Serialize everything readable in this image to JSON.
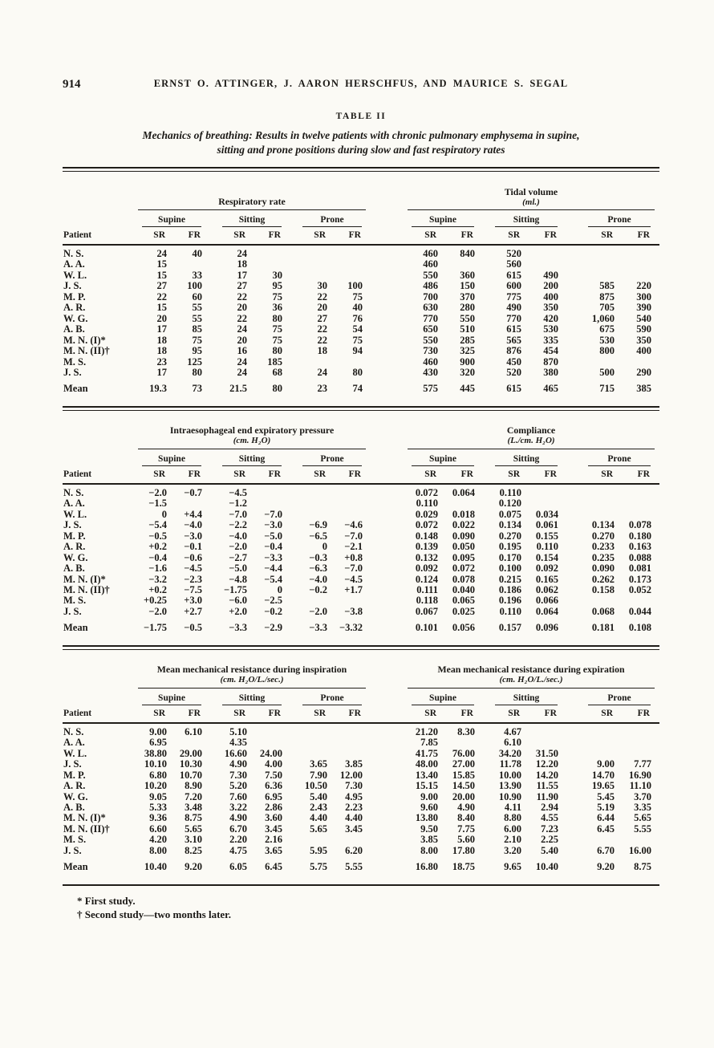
{
  "page": {
    "number": "914",
    "running_head": "ERNST O. ATTINGER, J. AARON HERSCHFUS, AND MAURICE S. SEGAL",
    "table_label": "TABLE II",
    "table_title": [
      "Mechanics of breathing: Results in twelve patients with chronic pulmonary emphysema in supine,",
      "sitting and prone positions during slow and fast respiratory rates"
    ],
    "footnotes": [
      "* First study.",
      "† Second study—two months later."
    ]
  },
  "tables": {
    "headers": {
      "patient": "Patient",
      "positions": [
        "Supine",
        "Sitting",
        "Prone"
      ],
      "sr": "SR",
      "fr": "FR",
      "mean_label": "Mean"
    }
  },
  "patients": [
    "N. S.",
    "A. A.",
    "W. L.",
    "J. S.",
    "M. P.",
    "A. R.",
    "W. G.",
    "A. B.",
    "M. N. (I)*",
    "M. N. (II)†",
    "M. S.",
    "J. S."
  ],
  "sections": [
    {
      "left": {
        "title": "Respiratory rate",
        "unit": "",
        "rows": [
          [
            "24",
            "40",
            "24",
            "",
            "",
            ""
          ],
          [
            "15",
            "",
            "18",
            "",
            "",
            ""
          ],
          [
            "15",
            "33",
            "17",
            "30",
            "",
            ""
          ],
          [
            "27",
            "100",
            "27",
            "95",
            "30",
            "100"
          ],
          [
            "22",
            "60",
            "22",
            "75",
            "22",
            "75"
          ],
          [
            "15",
            "55",
            "20",
            "36",
            "20",
            "40"
          ],
          [
            "20",
            "55",
            "22",
            "80",
            "27",
            "76"
          ],
          [
            "17",
            "85",
            "24",
            "75",
            "22",
            "54"
          ],
          [
            "18",
            "75",
            "20",
            "75",
            "22",
            "75"
          ],
          [
            "18",
            "95",
            "16",
            "80",
            "18",
            "94"
          ],
          [
            "23",
            "125",
            "24",
            "185",
            "",
            ""
          ],
          [
            "17",
            "80",
            "24",
            "68",
            "24",
            "80"
          ]
        ],
        "mean": [
          "19.3",
          "73",
          "21.5",
          "80",
          "23",
          "74"
        ]
      },
      "right": {
        "title": "Tidal volume",
        "unit": "(ml.)",
        "rows": [
          [
            "460",
            "840",
            "520",
            "",
            "",
            ""
          ],
          [
            "460",
            "",
            "560",
            "",
            "",
            ""
          ],
          [
            "550",
            "360",
            "615",
            "490",
            "",
            ""
          ],
          [
            "486",
            "150",
            "600",
            "200",
            "585",
            "220"
          ],
          [
            "700",
            "370",
            "775",
            "400",
            "875",
            "300"
          ],
          [
            "630",
            "280",
            "490",
            "350",
            "705",
            "390"
          ],
          [
            "770",
            "550",
            "770",
            "420",
            "1,060",
            "540"
          ],
          [
            "650",
            "510",
            "615",
            "530",
            "675",
            "590"
          ],
          [
            "550",
            "285",
            "565",
            "335",
            "530",
            "350"
          ],
          [
            "730",
            "325",
            "876",
            "454",
            "800",
            "400"
          ],
          [
            "460",
            "900",
            "450",
            "870",
            "",
            ""
          ],
          [
            "430",
            "320",
            "520",
            "380",
            "500",
            "290"
          ]
        ],
        "mean": [
          "575",
          "445",
          "615",
          "465",
          "715",
          "385"
        ]
      }
    },
    {
      "left": {
        "title": "Intraesophageal end expiratory pressure",
        "unit": "(cm. H₂O)",
        "rows": [
          [
            "−2.0",
            "−0.7",
            "−4.5",
            "",
            "",
            ""
          ],
          [
            "−1.5",
            "",
            "−1.2",
            "",
            "",
            ""
          ],
          [
            "0",
            "+4.4",
            "−7.0",
            "−7.0",
            "",
            ""
          ],
          [
            "−5.4",
            "−4.0",
            "−2.2",
            "−3.0",
            "−6.9",
            "−4.6"
          ],
          [
            "−0.5",
            "−3.0",
            "−4.0",
            "−5.0",
            "−6.5",
            "−7.0"
          ],
          [
            "+0.2",
            "−0.1",
            "−2.0",
            "−0.4",
            "0",
            "−2.1"
          ],
          [
            "−0.4",
            "−0.6",
            "−2.7",
            "−3.3",
            "−0.3",
            "+0.8"
          ],
          [
            "−1.6",
            "−4.5",
            "−5.0",
            "−4.4",
            "−6.3",
            "−7.0"
          ],
          [
            "−3.2",
            "−2.3",
            "−4.8",
            "−5.4",
            "−4.0",
            "−4.5"
          ],
          [
            "+0.2",
            "−7.5",
            "−1.75",
            "0",
            "−0.2",
            "+1.7"
          ],
          [
            "+0.25",
            "+3.0",
            "−6.0",
            "−2.5",
            "",
            ""
          ],
          [
            "−2.0",
            "+2.7",
            "+2.0",
            "−0.2",
            "−2.0",
            "−3.8"
          ]
        ],
        "mean": [
          "−1.75",
          "−0.5",
          "−3.3",
          "−2.9",
          "−3.3",
          "−3.32"
        ]
      },
      "right": {
        "title": "Compliance",
        "unit": "(L./cm. H₂O)",
        "rows": [
          [
            "0.072",
            "0.064",
            "0.110",
            "",
            "",
            ""
          ],
          [
            "0.110",
            "",
            "0.120",
            "",
            "",
            ""
          ],
          [
            "0.029",
            "0.018",
            "0.075",
            "0.034",
            "",
            ""
          ],
          [
            "0.072",
            "0.022",
            "0.134",
            "0.061",
            "0.134",
            "0.078"
          ],
          [
            "0.148",
            "0.090",
            "0.270",
            "0.155",
            "0.270",
            "0.180"
          ],
          [
            "0.139",
            "0.050",
            "0.195",
            "0.110",
            "0.233",
            "0.163"
          ],
          [
            "0.132",
            "0.095",
            "0.170",
            "0.154",
            "0.235",
            "0.088"
          ],
          [
            "0.092",
            "0.072",
            "0.100",
            "0.092",
            "0.090",
            "0.081"
          ],
          [
            "0.124",
            "0.078",
            "0.215",
            "0.165",
            "0.262",
            "0.173"
          ],
          [
            "0.111",
            "0.040",
            "0.186",
            "0.062",
            "0.158",
            "0.052"
          ],
          [
            "0.118",
            "0.065",
            "0.196",
            "0.066",
            "",
            ""
          ],
          [
            "0.067",
            "0.025",
            "0.110",
            "0.064",
            "0.068",
            "0.044"
          ]
        ],
        "mean": [
          "0.101",
          "0.056",
          "0.157",
          "0.096",
          "0.181",
          "0.108"
        ]
      }
    },
    {
      "left": {
        "title": "Mean mechanical resistance during inspiration",
        "unit": "(cm. H₂O/L./sec.)",
        "rows": [
          [
            "9.00",
            "6.10",
            "5.10",
            "",
            "",
            ""
          ],
          [
            "6.95",
            "",
            "4.35",
            "",
            "",
            ""
          ],
          [
            "38.80",
            "29.00",
            "16.60",
            "24.00",
            "",
            ""
          ],
          [
            "10.10",
            "10.30",
            "4.90",
            "4.00",
            "3.65",
            "3.85"
          ],
          [
            "6.80",
            "10.70",
            "7.30",
            "7.50",
            "7.90",
            "12.00"
          ],
          [
            "10.20",
            "8.90",
            "5.20",
            "6.36",
            "10.50",
            "7.30"
          ],
          [
            "9.05",
            "7.20",
            "7.60",
            "6.95",
            "5.40",
            "4.95"
          ],
          [
            "5.33",
            "3.48",
            "3.22",
            "2.86",
            "2.43",
            "2.23"
          ],
          [
            "9.36",
            "8.75",
            "4.90",
            "3.60",
            "4.40",
            "4.40"
          ],
          [
            "6.60",
            "5.65",
            "6.70",
            "3.45",
            "5.65",
            "3.45"
          ],
          [
            "4.20",
            "3.10",
            "2.20",
            "2.16",
            "",
            ""
          ],
          [
            "8.00",
            "8.25",
            "4.75",
            "3.65",
            "5.95",
            "6.20"
          ]
        ],
        "mean": [
          "10.40",
          "9.20",
          "6.05",
          "6.45",
          "5.75",
          "5.55"
        ]
      },
      "right": {
        "title": "Mean mechanical resistance during expiration",
        "unit": "(cm. H₂O/L./sec.)",
        "rows": [
          [
            "21.20",
            "8.30",
            "4.67",
            "",
            "",
            ""
          ],
          [
            "7.85",
            "",
            "6.10",
            "",
            "",
            ""
          ],
          [
            "41.75",
            "76.00",
            "34.20",
            "31.50",
            "",
            ""
          ],
          [
            "48.00",
            "27.00",
            "11.78",
            "12.20",
            "9.00",
            "7.77"
          ],
          [
            "13.40",
            "15.85",
            "10.00",
            "14.20",
            "14.70",
            "16.90"
          ],
          [
            "15.15",
            "14.50",
            "13.90",
            "11.55",
            "19.65",
            "11.10"
          ],
          [
            "9.00",
            "20.00",
            "10.90",
            "11.90",
            "5.45",
            "3.70"
          ],
          [
            "9.60",
            "4.90",
            "4.11",
            "2.94",
            "5.19",
            "3.35"
          ],
          [
            "13.80",
            "8.40",
            "8.80",
            "4.55",
            "6.44",
            "5.65"
          ],
          [
            "9.50",
            "7.75",
            "6.00",
            "7.23",
            "6.45",
            "5.55"
          ],
          [
            "3.85",
            "5.60",
            "2.10",
            "2.25",
            "",
            ""
          ],
          [
            "8.00",
            "17.80",
            "3.20",
            "5.40",
            "6.70",
            "16.00"
          ]
        ],
        "mean": [
          "16.80",
          "18.75",
          "9.65",
          "10.40",
          "9.20",
          "8.75"
        ]
      }
    }
  ]
}
